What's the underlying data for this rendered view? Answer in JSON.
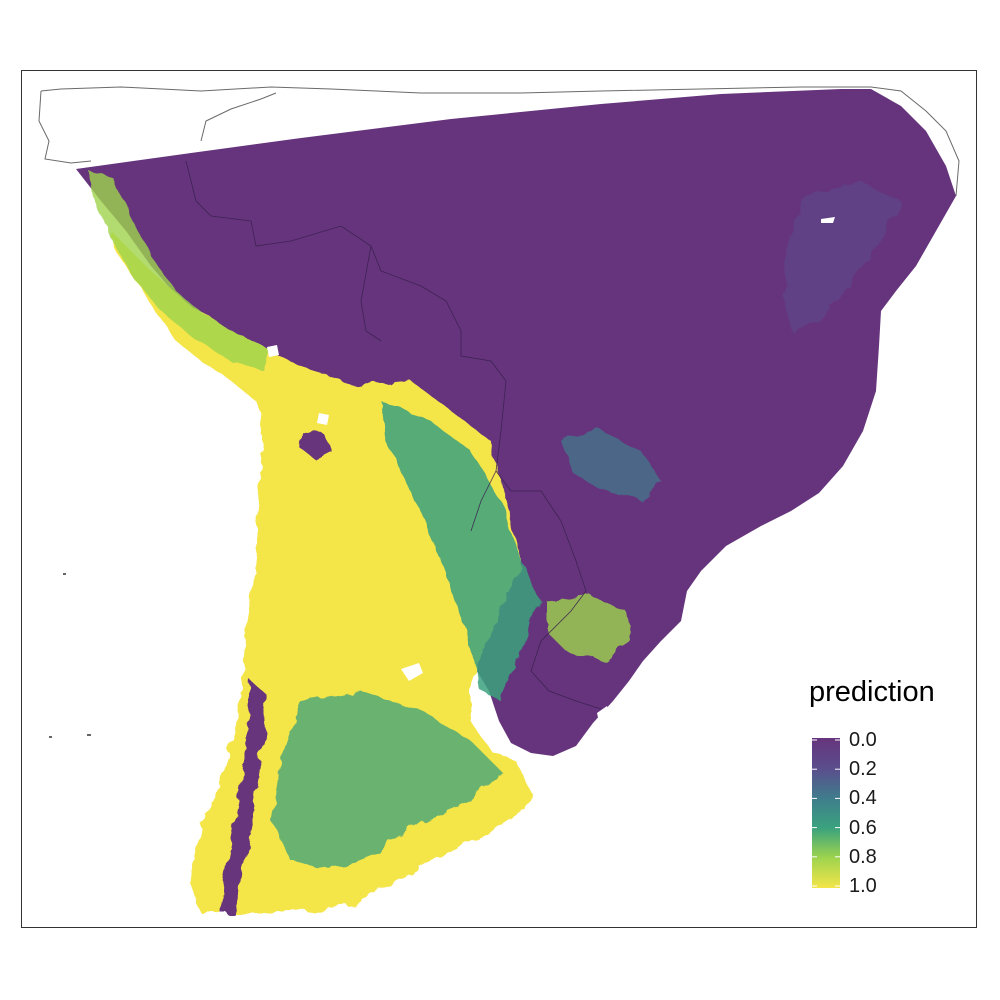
{
  "legend": {
    "title": "prediction",
    "labels": [
      "0.0",
      "0.2",
      "0.4",
      "0.6",
      "0.8",
      "1.0"
    ],
    "stops": [
      0.0,
      0.2,
      0.4,
      0.6,
      0.8,
      1.0
    ],
    "colors": [
      "#440154",
      "#3b528b",
      "#21908d",
      "#5dc863",
      "#fde725"
    ]
  },
  "map": {
    "subject": "habitat suitability prediction, southern South America",
    "land_color": "#66347c",
    "boundary_color": "#555555"
  }
}
